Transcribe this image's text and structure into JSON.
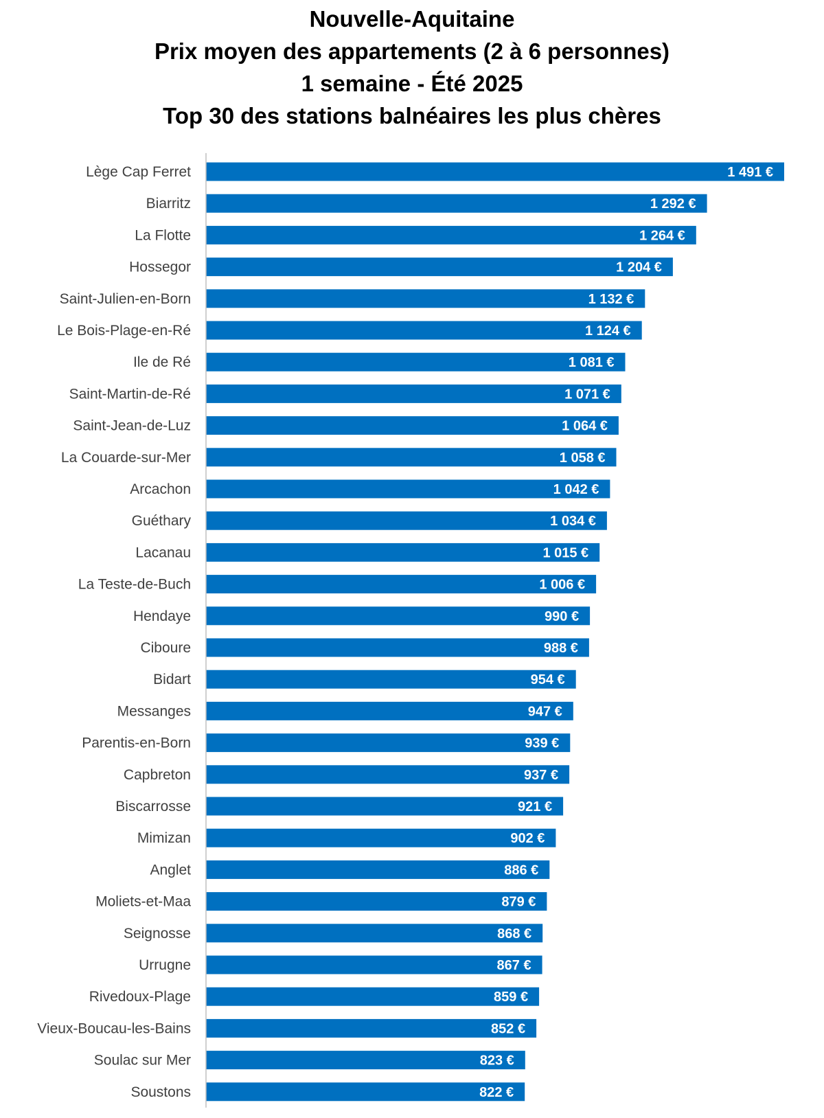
{
  "chart_data": {
    "type": "bar",
    "orientation": "horizontal",
    "title_lines": [
      "Nouvelle-Aquitaine",
      "Prix moyen des appartements (2 à 6 personnes)",
      "1 semaine - Été 2025",
      "Top 30 des stations balnéaires les plus chères"
    ],
    "categories": [
      "Lège Cap Ferret",
      "Biarritz",
      "La Flotte",
      "Hossegor",
      "Saint-Julien-en-Born",
      "Le Bois-Plage-en-Ré",
      "Ile de Ré",
      "Saint-Martin-de-Ré",
      "Saint-Jean-de-Luz",
      "La Couarde-sur-Mer",
      "Arcachon",
      "Guéthary",
      "Lacanau",
      "La Teste-de-Buch",
      "Hendaye",
      "Ciboure",
      "Bidart",
      "Messanges",
      "Parentis-en-Born",
      "Capbreton",
      "Biscarrosse",
      "Mimizan",
      "Anglet",
      "Moliets-et-Maa",
      "Seignosse",
      "Urrugne",
      "Rivedoux-Plage",
      "Vieux-Boucau-les-Bains",
      "Soulac sur Mer",
      "Soustons"
    ],
    "values": [
      1491,
      1292,
      1264,
      1204,
      1132,
      1124,
      1081,
      1071,
      1064,
      1058,
      1042,
      1034,
      1015,
      1006,
      990,
      988,
      954,
      947,
      939,
      937,
      921,
      902,
      886,
      879,
      868,
      867,
      859,
      852,
      823,
      822
    ],
    "value_labels": [
      "1 491 €",
      "1 292 €",
      "1 264 €",
      "1 204 €",
      "1 132 €",
      "1 124 €",
      "1 081 €",
      "1 071 €",
      "1 064 €",
      "1 058 €",
      "1 042 €",
      "1 034 €",
      "1 015 €",
      "1 006 €",
      "990 €",
      "988 €",
      "954 €",
      "947 €",
      "939 €",
      "937 €",
      "921 €",
      "902 €",
      "886 €",
      "879 €",
      "868 €",
      "867 €",
      "859 €",
      "852 €",
      "823 €",
      "822 €"
    ],
    "xlim": [
      0,
      1491
    ],
    "grid": false,
    "legend": "none",
    "bar_color": "#0070C0",
    "label_color": "#404040",
    "axis_color": "#BFBFBF"
  }
}
